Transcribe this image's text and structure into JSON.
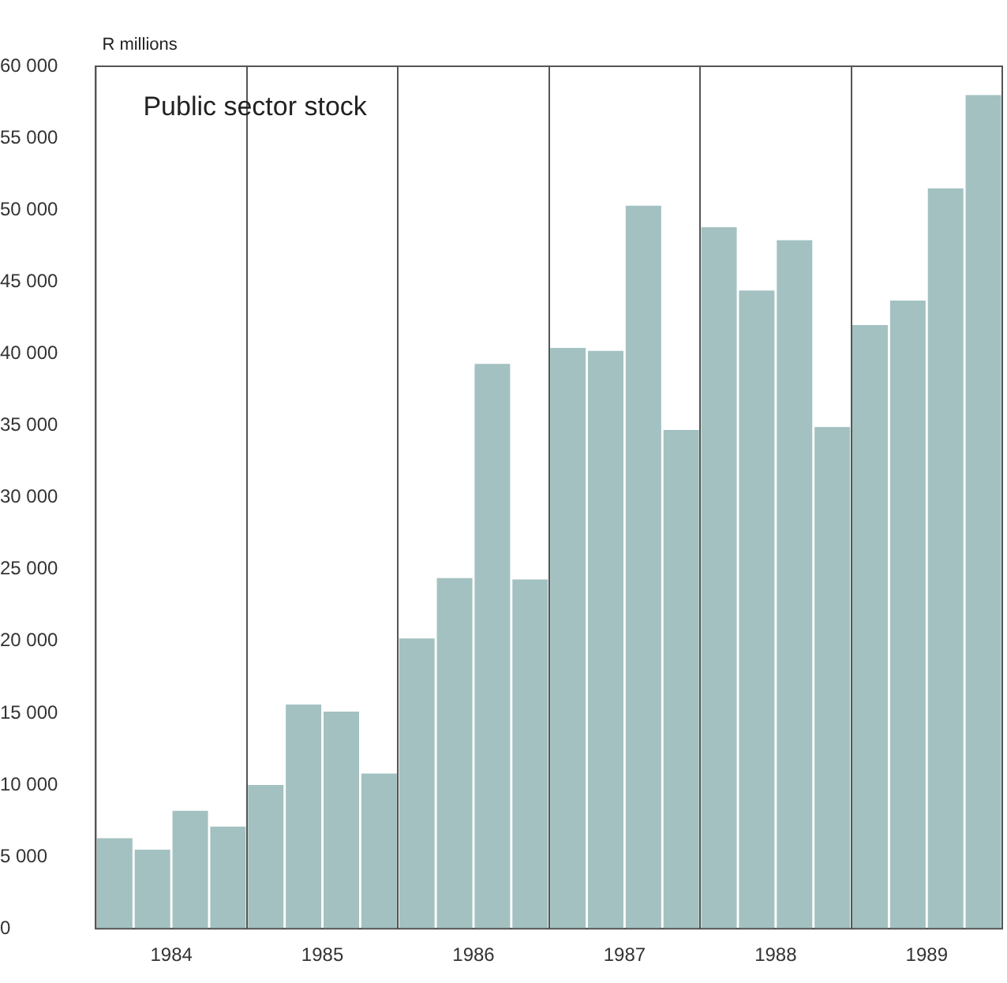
{
  "chart_data": {
    "type": "bar",
    "title": "Public sector stock",
    "ylabel": "R millions",
    "categories": [
      "1984",
      "1985",
      "1986",
      "1987",
      "1988",
      "1989"
    ],
    "series": [
      {
        "color": "#a3c1c1",
        "values": [
          6300,
          10000,
          20200,
          40400,
          48800,
          42000
        ]
      },
      {
        "color": "#a3c1c1",
        "values": [
          5500,
          15600,
          24400,
          40200,
          44400,
          43700
        ]
      },
      {
        "color": "#a3c1c1",
        "values": [
          8200,
          15100,
          39300,
          50300,
          47900,
          51500
        ]
      },
      {
        "color": "#a3c1c1",
        "values": [
          7100,
          10800,
          24300,
          34700,
          34900,
          58000
        ]
      }
    ],
    "ylim": [
      0,
      60000
    ],
    "yticks": [
      {
        "value": 0,
        "label": "0"
      },
      {
        "value": 5000,
        "label": "5 000"
      },
      {
        "value": 10000,
        "label": "10 000"
      },
      {
        "value": 15000,
        "label": "15 000"
      },
      {
        "value": 20000,
        "label": "20 000"
      },
      {
        "value": 25000,
        "label": "25 000"
      },
      {
        "value": 30000,
        "label": "30 000"
      },
      {
        "value": 35000,
        "label": "35 000"
      },
      {
        "value": 40000,
        "label": "40 000"
      },
      {
        "value": 45000,
        "label": "45 000"
      },
      {
        "value": 50000,
        "label": "50 000"
      },
      {
        "value": 55000,
        "label": "55 000"
      },
      {
        "value": 60000,
        "label": "60 000"
      }
    ],
    "grid": "x",
    "legend": false
  }
}
